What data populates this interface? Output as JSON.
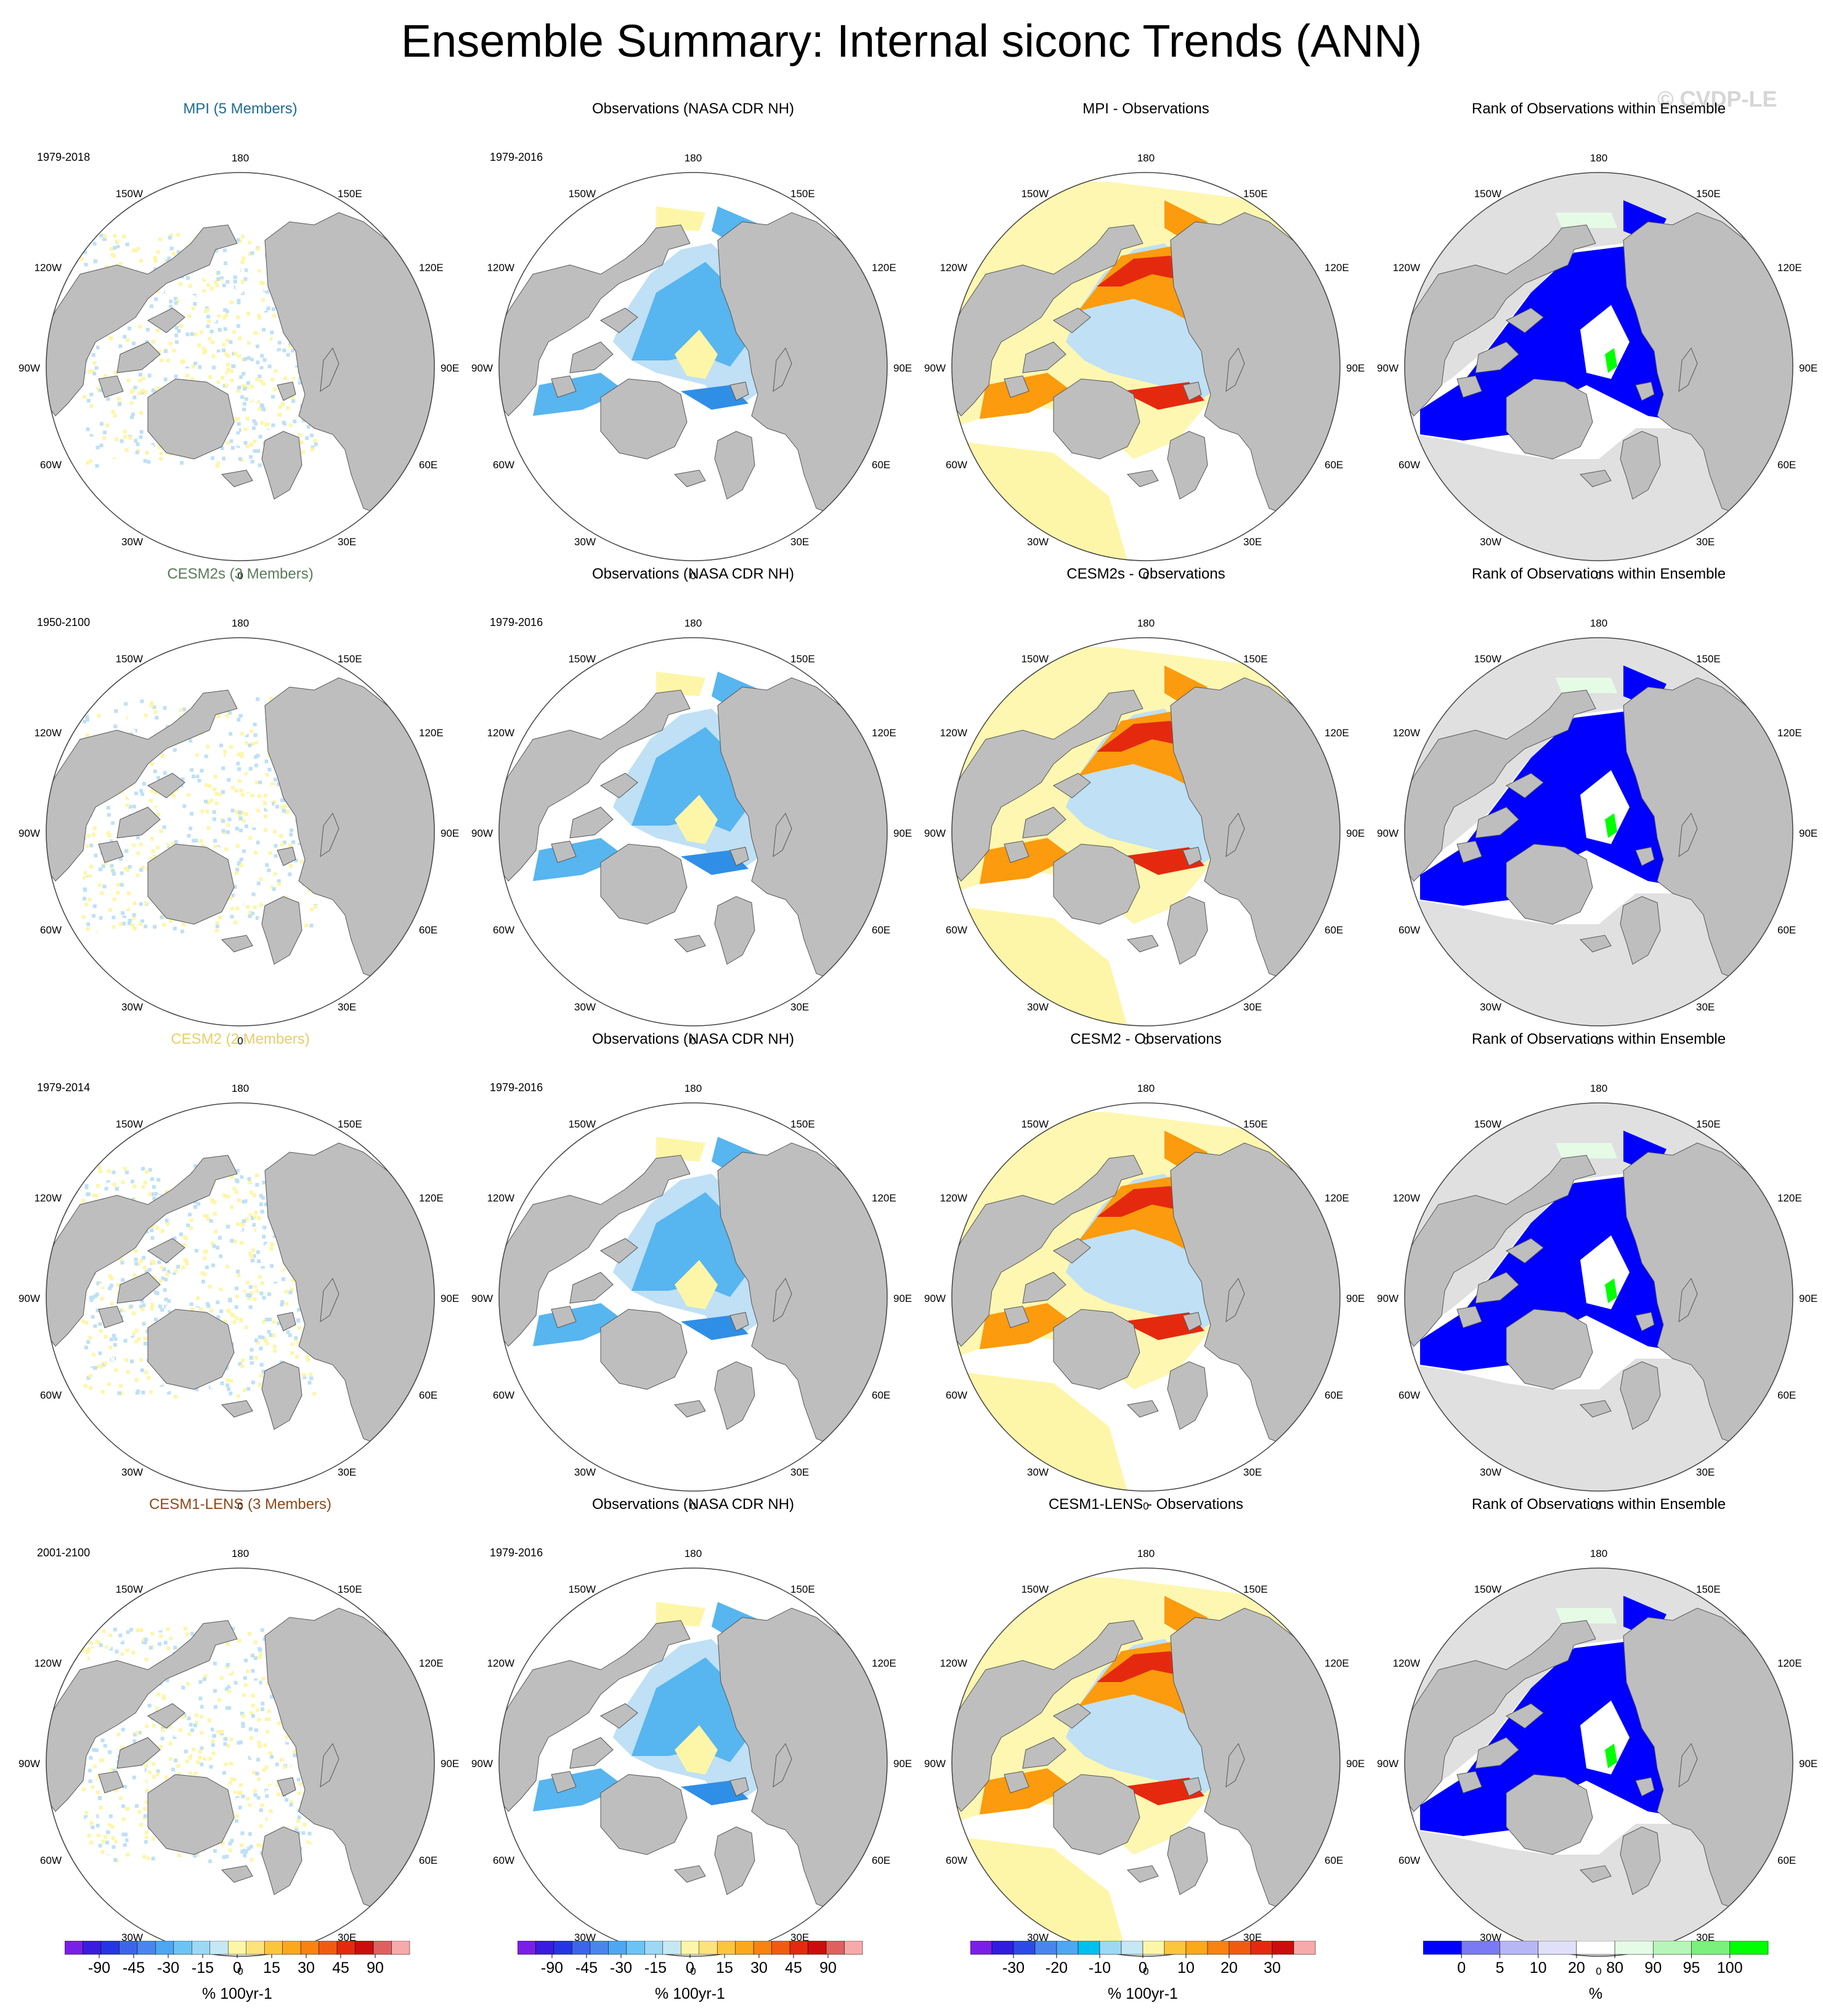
{
  "title": "Ensemble Summary: Internal siconc Trends (ANN)",
  "watermark": "© CVDP-LE",
  "colors": {
    "land": "#bebebe",
    "ocean": "#ffffff",
    "rank_outside": "#e0e0e0",
    "dots": [
      "#fdf6a8",
      "#bfe0f5",
      "#ffffff"
    ],
    "obs_light": "#bfe0f5",
    "obs_mid": "#57b5ef",
    "obs_dark": "#2f8fe6",
    "obs_deep": "#1f1fd0",
    "obs_pos": "#fdf6a8",
    "diff_yellow": "#fdf6a8",
    "diff_orange": "#fb9b0d",
    "diff_red": "#e5290f",
    "diff_darkred": "#c40d0d",
    "rank_blue": "#0000ff",
    "rank_green": "#00ff00"
  },
  "map_labels": {
    "lon_top": "180",
    "lon_bottom": "0",
    "lon_150W": "150W",
    "lon_150E": "150E",
    "lon_120W": "120W",
    "lon_120E": "120E",
    "lon_90W": "90W",
    "lon_90E": "90E",
    "lon_60W": "60W",
    "lon_60E": "60E",
    "lon_30W": "30W",
    "lon_30E": "30E"
  },
  "rows": [
    {
      "model_title": "MPI (5 Members)",
      "model_color": "#1f6a93",
      "model_period": "1979-2018",
      "obs_title": "Observations (NASA CDR NH)",
      "obs_period": "1979-2016",
      "diff_title": "MPI - Observations",
      "rank_title": "Rank of Observations within Ensemble"
    },
    {
      "model_title": "CESM2s (3 Members)",
      "model_color": "#5b7b5b",
      "model_period": "1950-2100",
      "obs_title": "Observations (NASA CDR NH)",
      "obs_period": "1979-2016",
      "diff_title": "CESM2s - Observations",
      "rank_title": "Rank of Observations within Ensemble"
    },
    {
      "model_title": "CESM2 (2 Members)",
      "model_color": "#e6cf6a",
      "model_period": "1979-2014",
      "obs_title": "Observations (NASA CDR NH)",
      "obs_period": "1979-2016",
      "diff_title": "CESM2 - Observations",
      "rank_title": "Rank of Observations within Ensemble"
    },
    {
      "model_title": "CESM1-LENS (3 Members)",
      "model_color": "#8b4a1b",
      "model_period": "2001-2100",
      "obs_title": "Observations (NASA CDR NH)",
      "obs_period": "1979-2016",
      "diff_title": "CESM1-LENS - Observations",
      "rank_title": "Rank of Observations within Ensemble"
    }
  ],
  "colorbars": [
    {
      "unit": "% 100yr-1",
      "colors": [
        "#7a1fe8",
        "#3a1ce0",
        "#2535e5",
        "#3e64ec",
        "#4a85ef",
        "#4da7f2",
        "#6cc4f4",
        "#9dd8f5",
        "#c6e8f5",
        "#fdf6a8",
        "#fde37a",
        "#fcc63b",
        "#fba81b",
        "#f98210",
        "#f25b0f",
        "#e5290f",
        "#cc0d0d",
        "#e06060",
        "#f7aaaa"
      ],
      "ticks": [
        "-90",
        "-45",
        "-30",
        "-15",
        "0",
        "15",
        "30",
        "45",
        "90"
      ]
    },
    {
      "unit": "% 100yr-1",
      "colors": [
        "#7a1fe8",
        "#3a1ce0",
        "#2535e5",
        "#3e64ec",
        "#4a85ef",
        "#4da7f2",
        "#6cc4f4",
        "#9dd8f5",
        "#c6e8f5",
        "#fdf6a8",
        "#fde37a",
        "#fcc63b",
        "#fba81b",
        "#f98210",
        "#f25b0f",
        "#e5290f",
        "#cc0d0d",
        "#e06060",
        "#f7aaaa"
      ],
      "ticks": [
        "-90",
        "-45",
        "-30",
        "-15",
        "0",
        "15",
        "30",
        "45",
        "90"
      ]
    },
    {
      "unit": "% 100yr-1",
      "colors": [
        "#7a1fe8",
        "#2f1ce0",
        "#2d4ae8",
        "#4a85ef",
        "#4da7f2",
        "#00c0f0",
        "#9dd8f5",
        "#c6e8f5",
        "#fdf6a8",
        "#fcc63b",
        "#fba81b",
        "#f98210",
        "#f25b0f",
        "#e5290f",
        "#cc0d0d",
        "#f7aaaa"
      ],
      "ticks": [
        "-30",
        "-20",
        "-10",
        "0",
        "10",
        "20",
        "30"
      ]
    },
    {
      "unit": "%",
      "colors": [
        "#0000ff",
        "#7a7af5",
        "#b7b7f5",
        "#e0e0fa",
        "#ffffff",
        "#e6fbe6",
        "#b8f5b8",
        "#7cf07c",
        "#00ff00"
      ],
      "ticks": [
        "0",
        "5",
        "10",
        "20",
        "80",
        "90",
        "95",
        "100"
      ]
    }
  ]
}
